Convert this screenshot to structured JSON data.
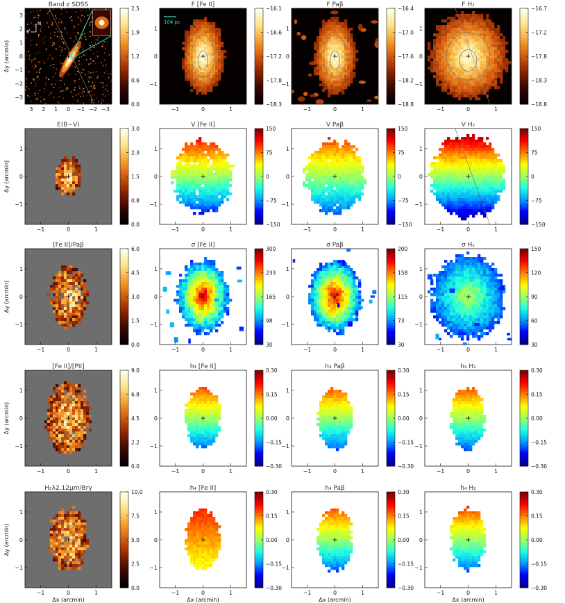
{
  "figure": {
    "colormaps": {
      "flux": [
        "#000000",
        "#3a0700",
        "#8a2200",
        "#d05a10",
        "#f5a030",
        "#fde48a",
        "#ffffe8"
      ],
      "jet": [
        "#00008f",
        "#0000ff",
        "#00a0ff",
        "#20ffe0",
        "#a0ff60",
        "#ffff00",
        "#ff8000",
        "#ff0000",
        "#800000"
      ]
    }
  },
  "chart_data": [
    {
      "type": "heatmap",
      "title": "Band z SDSS",
      "ylabel": "Δy (arcmin)",
      "xticks": [
        "3",
        "2",
        "1",
        "0",
        "−1",
        "−2",
        "−3"
      ],
      "yticks": [
        "3",
        "2",
        "1",
        "0",
        "−1",
        "−2",
        "−3"
      ],
      "colorbar": [
        "2.5",
        "1.9",
        "1.2",
        "0.6",
        "0.0"
      ],
      "colormap": "flux",
      "kind": "galaxy",
      "compass": [
        "N",
        "E"
      ]
    },
    {
      "type": "heatmap",
      "title": "F [Fe II]",
      "xticks": [
        "−1",
        "0",
        "1"
      ],
      "yticks": [
        "1",
        "0",
        "−1"
      ],
      "colorbar": [
        "−16.1",
        "−16.6",
        "−17.2",
        "−17.8",
        "−18.3"
      ],
      "colormap": "flux",
      "kind": "flux",
      "scalebar": "104 pc"
    },
    {
      "type": "heatmap",
      "title": "F Paβ",
      "xticks": [
        "−1",
        "0",
        "1"
      ],
      "yticks": [
        "1",
        "0",
        "−1"
      ],
      "colorbar": [
        "−16.4",
        "−17.0",
        "−17.6",
        "−18.2",
        "−18.8"
      ],
      "colormap": "flux",
      "kind": "fluxblobs"
    },
    {
      "type": "heatmap",
      "title": "F H₂",
      "xticks": [
        "−1",
        "0",
        "1"
      ],
      "yticks": [
        "1",
        "0",
        "−1"
      ],
      "colorbar": [
        "−16.7",
        "−17.2",
        "−17.8",
        "−18.3",
        "−18.8"
      ],
      "colormap": "flux",
      "kind": "fluxwide"
    },
    {
      "type": "heatmap",
      "title": "E(B−V)",
      "ylabel": "Δy (arcmin)",
      "xticks": [
        "−1",
        "0",
        "1"
      ],
      "yticks": [
        "1",
        "0",
        "−1"
      ],
      "colorbar": [
        "3.0",
        "2.3",
        "1.5",
        "0.8",
        "0.0"
      ],
      "colormap": "flux",
      "kind": "ratio",
      "area": 0.45
    },
    {
      "type": "heatmap",
      "title": "V [Fe II]",
      "xticks": [
        "−1",
        "0",
        "1"
      ],
      "yticks": [
        "1",
        "0",
        "−1"
      ],
      "colorbar": [
        "150",
        "75",
        "0",
        "−75",
        "−150"
      ],
      "colormap": "jet",
      "kind": "velocity",
      "amp": 0.35
    },
    {
      "type": "heatmap",
      "title": "V Paβ",
      "xticks": [
        "−1",
        "0",
        "1"
      ],
      "yticks": [
        "1",
        "0",
        "−1"
      ],
      "colorbar": [
        "150",
        "75",
        "0",
        "−75",
        "−150"
      ],
      "colormap": "jet",
      "kind": "velocity",
      "amp": 0.3
    },
    {
      "type": "heatmap",
      "title": "V H₂",
      "xticks": [
        "−1",
        "0",
        "1"
      ],
      "yticks": [
        "1",
        "0",
        "−1"
      ],
      "colorbar": [
        "150",
        "75",
        "0",
        "−75",
        "−150"
      ],
      "colormap": "jet",
      "kind": "velocitybig"
    },
    {
      "type": "heatmap",
      "title": "[Fe II]/Paβ",
      "ylabel": "Δy (arcmin)",
      "xticks": [
        "−1",
        "0",
        "1"
      ],
      "yticks": [
        "1",
        "0",
        "−1"
      ],
      "colorbar": [
        "6.0",
        "4.5",
        "3.0",
        "1.5",
        "0.0"
      ],
      "colormap": "flux",
      "kind": "ratio",
      "area": 0.8
    },
    {
      "type": "heatmap",
      "title": "σ [Fe II]",
      "xticks": [
        "−1",
        "0",
        "1"
      ],
      "yticks": [
        "1",
        "0",
        "−1"
      ],
      "colorbar": [
        "300",
        "233",
        "165",
        "98",
        "30"
      ],
      "colormap": "jet",
      "kind": "sigma"
    },
    {
      "type": "heatmap",
      "title": "σ Paβ",
      "xticks": [
        "−1",
        "0",
        "1"
      ],
      "yticks": [
        "1",
        "0",
        "−1"
      ],
      "colorbar": [
        "200",
        "158",
        "115",
        "73",
        "30"
      ],
      "colormap": "jet",
      "kind": "sigma"
    },
    {
      "type": "heatmap",
      "title": "σ H₂",
      "xticks": [
        "−1",
        "0",
        "1"
      ],
      "yticks": [
        "1",
        "0",
        "−1"
      ],
      "colorbar": [
        "150",
        "120",
        "90",
        "60",
        "30"
      ],
      "colormap": "jet",
      "kind": "sigmabig"
    },
    {
      "type": "heatmap",
      "title": "[Fe II]/[PII]",
      "ylabel": "Δy (arcmin)",
      "xticks": [
        "−1",
        "0",
        "1"
      ],
      "yticks": [
        "1",
        "0",
        "−1"
      ],
      "colorbar": [
        "9.0",
        "6.8",
        "4.5",
        "2.2",
        "0.0"
      ],
      "colormap": "flux",
      "kind": "ratio",
      "area": 1.0
    },
    {
      "type": "heatmap",
      "title": "h₃ [Fe II]",
      "xticks": [
        "−1",
        "0",
        "1"
      ],
      "yticks": [
        "1",
        "0",
        "−1"
      ],
      "colorbar": [
        "0.30",
        "0.15",
        "0.00",
        "−0.15",
        "−0.30"
      ],
      "colormap": "jet",
      "kind": "moment"
    },
    {
      "type": "heatmap",
      "title": "h₃ Paβ",
      "xticks": [
        "−1",
        "0",
        "1"
      ],
      "yticks": [
        "1",
        "0",
        "−1"
      ],
      "colorbar": [
        "0.30",
        "0.15",
        "0.00",
        "−0.15",
        "−0.30"
      ],
      "colormap": "jet",
      "kind": "moment"
    },
    {
      "type": "heatmap",
      "title": "h₃ H₂",
      "xticks": [
        "−1",
        "0",
        "1"
      ],
      "yticks": [
        "1",
        "0",
        "−1"
      ],
      "colorbar": [
        "0.30",
        "0.15",
        "0.00",
        "−0.15",
        "−0.30"
      ],
      "colormap": "jet",
      "kind": "moment"
    },
    {
      "type": "heatmap",
      "title": "H₂λ2.12μm/Brγ",
      "ylabel": "Δy (arcmin)",
      "xlabel": "Δx (arcmin)",
      "xticks": [
        "−1",
        "0",
        "1"
      ],
      "yticks": [
        "1",
        "0",
        "−1"
      ],
      "colorbar": [
        "10.0",
        "7.5",
        "5.0",
        "2.5",
        "0.0"
      ],
      "colormap": "flux",
      "kind": "ratio",
      "area": 0.85
    },
    {
      "type": "heatmap",
      "title": "h₄ [Fe II]",
      "xlabel": "Δx (arcmin)",
      "xticks": [
        "−1",
        "0",
        "1"
      ],
      "yticks": [
        "1",
        "0",
        "−1"
      ],
      "colorbar": [
        "0.30",
        "0.15",
        "0.00",
        "−0.15",
        "−0.30"
      ],
      "colormap": "jet",
      "kind": "moment4"
    },
    {
      "type": "heatmap",
      "title": "h₄ Paβ",
      "xlabel": "Δx (arcmin)",
      "xticks": [
        "−1",
        "0",
        "1"
      ],
      "yticks": [
        "1",
        "0",
        "−1"
      ],
      "colorbar": [
        "0.30",
        "0.15",
        "0.00",
        "−0.15",
        "−0.30"
      ],
      "colormap": "jet",
      "kind": "moment"
    },
    {
      "type": "heatmap",
      "title": "h₄ H₂",
      "xlabel": "Δx (arcmin)",
      "xticks": [
        "−1",
        "0",
        "1"
      ],
      "yticks": [
        "1",
        "0",
        "−1"
      ],
      "colorbar": [
        "0.30",
        "0.15",
        "0.00",
        "−0.15",
        "−0.30"
      ],
      "colormap": "jet",
      "kind": "moment"
    }
  ]
}
